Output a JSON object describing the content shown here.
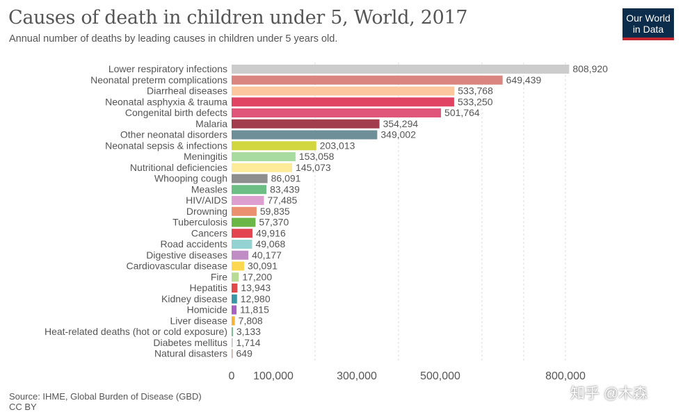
{
  "header": {
    "title": "Causes of death in children under 5, World, 2017",
    "subtitle": "Annual number of deaths by leading causes in children under 5 years old.",
    "logo_line1": "Our World",
    "logo_line2": "in Data"
  },
  "footer": {
    "source": "Source: IHME, Global Burden of Disease (GBD)",
    "license": "CC BY"
  },
  "watermark": "知乎 @木森",
  "chart_data": {
    "type": "bar",
    "orientation": "horizontal",
    "title": "Causes of death in children under 5, World, 2017",
    "subtitle": "Annual number of deaths by leading causes in children under 5 years old.",
    "xlim": [
      0,
      850000
    ],
    "x_ticks": [
      {
        "value": 0,
        "label": "0"
      },
      {
        "value": 100000,
        "label": "100,000"
      },
      {
        "value": 300000,
        "label": "300,000"
      },
      {
        "value": 500000,
        "label": "500,000"
      },
      {
        "value": 800000,
        "label": "800,000"
      }
    ],
    "gridlines": [
      200000,
      400000,
      600000,
      700000,
      800000
    ],
    "grid": true,
    "legend": "none",
    "bars": [
      {
        "label": "Lower respiratory infections",
        "value": 808920,
        "display": "808,920",
        "color": "#cccccc"
      },
      {
        "label": "Neonatal preterm complications",
        "value": 649439,
        "display": "649,439",
        "color": "#da8580"
      },
      {
        "label": "Diarrheal diseases",
        "value": 533768,
        "display": "533,768",
        "color": "#fcc79f"
      },
      {
        "label": "Neonatal asphyxia & trauma",
        "value": 533250,
        "display": "533,250",
        "color": "#e04462"
      },
      {
        "label": "Congenital birth defects",
        "value": 501764,
        "display": "501,764",
        "color": "#e0567a"
      },
      {
        "label": "Malaria",
        "value": 354294,
        "display": "354,294",
        "color": "#a13d4d"
      },
      {
        "label": "Other neonatal disorders",
        "value": 349002,
        "display": "349,002",
        "color": "#6e8f98"
      },
      {
        "label": "Neonatal sepsis & infections",
        "value": 203013,
        "display": "203,013",
        "color": "#d2d740"
      },
      {
        "label": "Meningitis",
        "value": 153058,
        "display": "153,058",
        "color": "#a8dba0"
      },
      {
        "label": "Nutritional deficiencies",
        "value": 145073,
        "display": "145,073",
        "color": "#fdeb9a"
      },
      {
        "label": "Whooping cough",
        "value": 86091,
        "display": "86,091",
        "color": "#8e8e8e"
      },
      {
        "label": "Measles",
        "value": 83439,
        "display": "83,439",
        "color": "#6cbe85"
      },
      {
        "label": "HIV/AIDS",
        "value": 77485,
        "display": "77,485",
        "color": "#dc9fd0"
      },
      {
        "label": "Drowning",
        "value": 59835,
        "display": "59,835",
        "color": "#ec9072"
      },
      {
        "label": "Tuberculosis",
        "value": 57370,
        "display": "57,370",
        "color": "#6ab748"
      },
      {
        "label": "Cancers",
        "value": 49916,
        "display": "49,916",
        "color": "#e2454f"
      },
      {
        "label": "Road accidents",
        "value": 49068,
        "display": "49,068",
        "color": "#95d3d3"
      },
      {
        "label": "Digestive diseases",
        "value": 40177,
        "display": "40,177",
        "color": "#bf8dc3"
      },
      {
        "label": "Cardiovascular disease",
        "value": 30091,
        "display": "30,091",
        "color": "#fbd850"
      },
      {
        "label": "Fire",
        "value": 17200,
        "display": "17,200",
        "color": "#b8dc96"
      },
      {
        "label": "Hepatitis",
        "value": 13943,
        "display": "13,943",
        "color": "#e04a4a"
      },
      {
        "label": "Kidney disease",
        "value": 12980,
        "display": "12,980",
        "color": "#3a98a6"
      },
      {
        "label": "Homicide",
        "value": 11815,
        "display": "11,815",
        "color": "#a862c1"
      },
      {
        "label": "Liver disease",
        "value": 7808,
        "display": "7,808",
        "color": "#f5b536"
      },
      {
        "label": "Heat-related deaths (hot or cold exposure)",
        "value": 3133,
        "display": "3,133",
        "color": "#6dbd8a"
      },
      {
        "label": "Diabetes mellitus",
        "value": 1714,
        "display": "1,714",
        "color": "#bbbbbb"
      },
      {
        "label": "Natural disasters",
        "value": 649,
        "display": "649",
        "color": "#cf9a8f"
      }
    ]
  }
}
